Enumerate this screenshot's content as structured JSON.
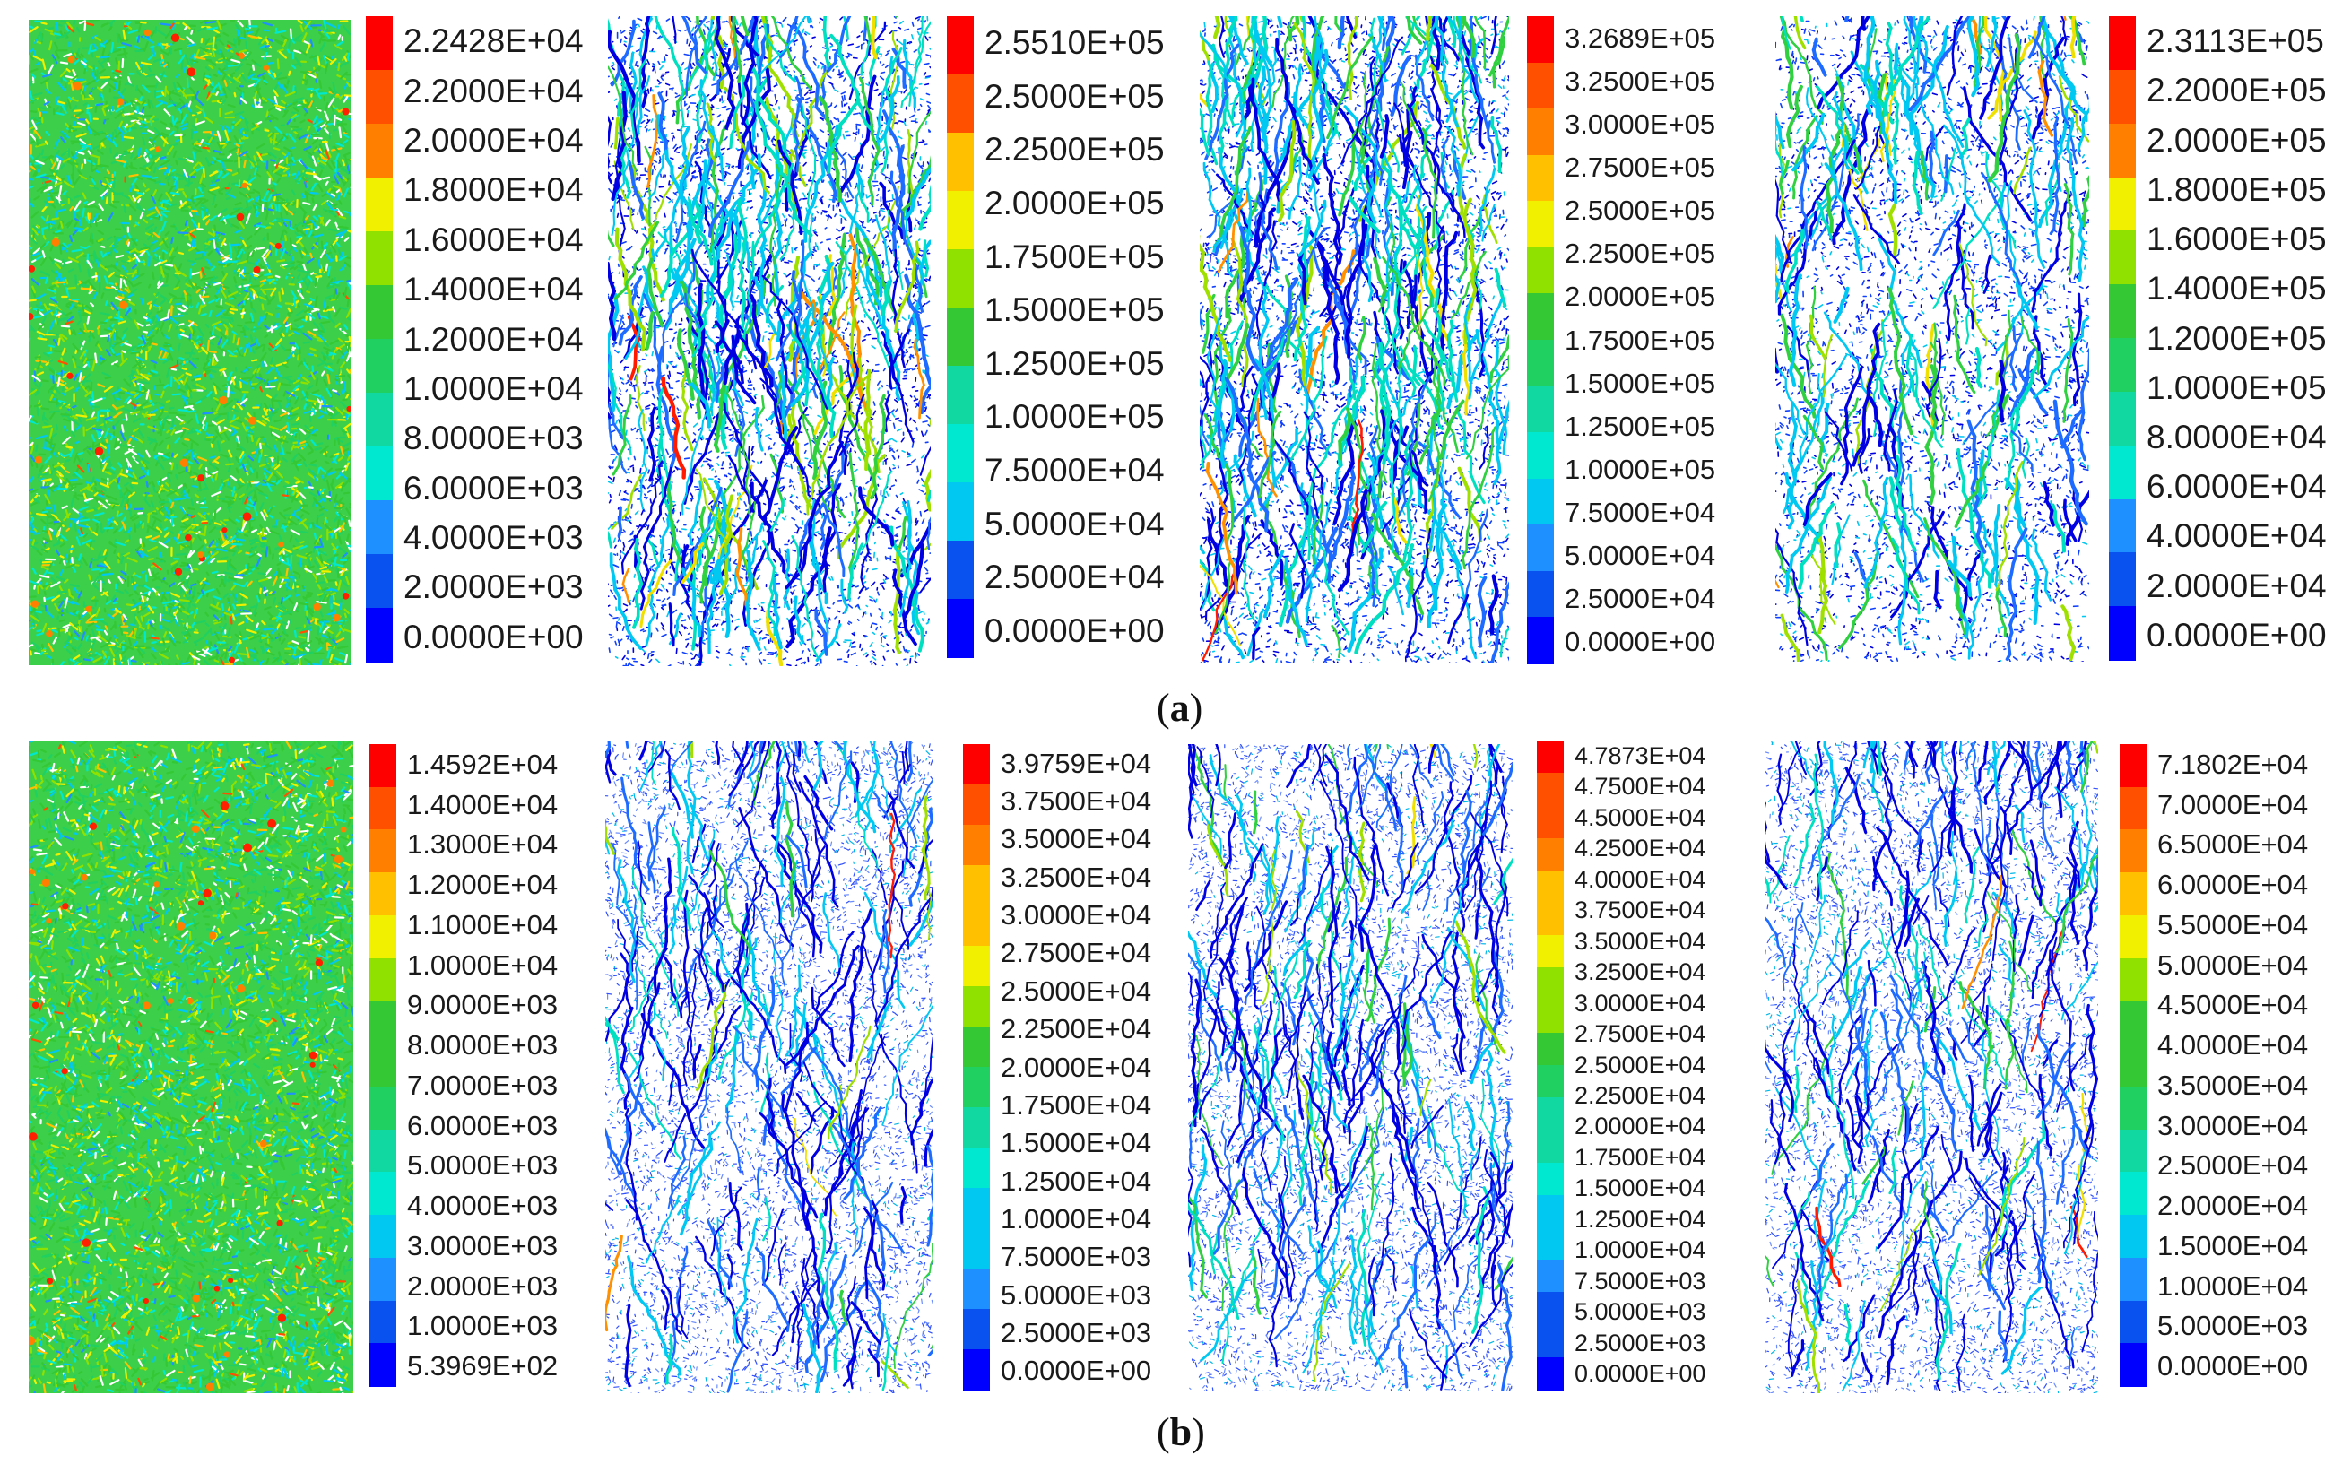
{
  "colors": [
    "#0000ff",
    "#0a52f0",
    "#1e90ff",
    "#00c8f0",
    "#00e8d0",
    "#10d8a0",
    "#20d060",
    "#34c834",
    "#90e000",
    "#f0f000",
    "#ffc000",
    "#ff8000",
    "#ff5000",
    "#ff0000"
  ],
  "captions": {
    "a": "a",
    "b": "b"
  },
  "rows": [
    {
      "id": "a",
      "panels": [
        {
          "style": "dense",
          "ticks": [
            "2.2428E+04",
            "2.2000E+04",
            "2.0000E+04",
            "1.8000E+04",
            "1.6000E+04",
            "1.4000E+04",
            "1.2000E+04",
            "1.0000E+04",
            "8.0000E+03",
            "6.0000E+03",
            "4.0000E+03",
            "2.0000E+03",
            "0.0000E+00"
          ]
        },
        {
          "style": "cracked",
          "ticks": [
            "2.5510E+05",
            "2.5000E+05",
            "2.2500E+05",
            "2.0000E+05",
            "1.7500E+05",
            "1.5000E+05",
            "1.2500E+05",
            "1.0000E+05",
            "7.5000E+04",
            "5.0000E+04",
            "2.5000E+04",
            "0.0000E+00"
          ]
        },
        {
          "style": "cracked",
          "ticks": [
            "3.2689E+05",
            "3.2500E+05",
            "3.0000E+05",
            "2.7500E+05",
            "2.5000E+05",
            "2.2500E+05",
            "2.0000E+05",
            "1.7500E+05",
            "1.5000E+05",
            "1.2500E+05",
            "1.0000E+05",
            "7.5000E+04",
            "5.0000E+04",
            "2.5000E+04",
            "0.0000E+00"
          ]
        },
        {
          "style": "sparse",
          "ticks": [
            "2.3113E+05",
            "2.2000E+05",
            "2.0000E+05",
            "1.8000E+05",
            "1.6000E+05",
            "1.4000E+05",
            "1.2000E+05",
            "1.0000E+05",
            "8.0000E+04",
            "6.0000E+04",
            "4.0000E+04",
            "2.0000E+04",
            "0.0000E+00"
          ]
        }
      ]
    },
    {
      "id": "b",
      "panels": [
        {
          "style": "dense",
          "ticks": [
            "1.4592E+04",
            "1.4000E+04",
            "1.3000E+04",
            "1.2000E+04",
            "1.1000E+04",
            "1.0000E+04",
            "9.0000E+03",
            "8.0000E+03",
            "7.0000E+03",
            "6.0000E+03",
            "5.0000E+03",
            "4.0000E+03",
            "3.0000E+03",
            "2.0000E+03",
            "1.0000E+03",
            "5.3969E+02"
          ]
        },
        {
          "style": "faint",
          "ticks": [
            "3.9759E+04",
            "3.7500E+04",
            "3.5000E+04",
            "3.2500E+04",
            "3.0000E+04",
            "2.7500E+04",
            "2.5000E+04",
            "2.2500E+04",
            "2.0000E+04",
            "1.7500E+04",
            "1.5000E+04",
            "1.2500E+04",
            "1.0000E+04",
            "7.5000E+03",
            "5.0000E+03",
            "2.5000E+03",
            "0.0000E+00"
          ]
        },
        {
          "style": "faint",
          "ticks": [
            "4.7873E+04",
            "4.7500E+04",
            "4.5000E+04",
            "4.2500E+04",
            "4.0000E+04",
            "3.7500E+04",
            "3.5000E+04",
            "3.2500E+04",
            "3.0000E+04",
            "2.7500E+04",
            "2.5000E+04",
            "2.2500E+04",
            "2.0000E+04",
            "1.7500E+04",
            "1.5000E+04",
            "1.2500E+04",
            "1.0000E+04",
            "7.5000E+03",
            "5.0000E+03",
            "2.5000E+03",
            "0.0000E+00"
          ]
        },
        {
          "style": "faint",
          "ticks": [
            "7.1802E+04",
            "7.0000E+04",
            "6.5000E+04",
            "6.0000E+04",
            "5.5000E+04",
            "5.0000E+04",
            "4.5000E+04",
            "4.0000E+04",
            "3.5000E+04",
            "3.0000E+04",
            "2.5000E+04",
            "2.0000E+04",
            "1.5000E+04",
            "1.0000E+04",
            "5.0000E+03",
            "0.0000E+00"
          ]
        }
      ]
    }
  ]
}
